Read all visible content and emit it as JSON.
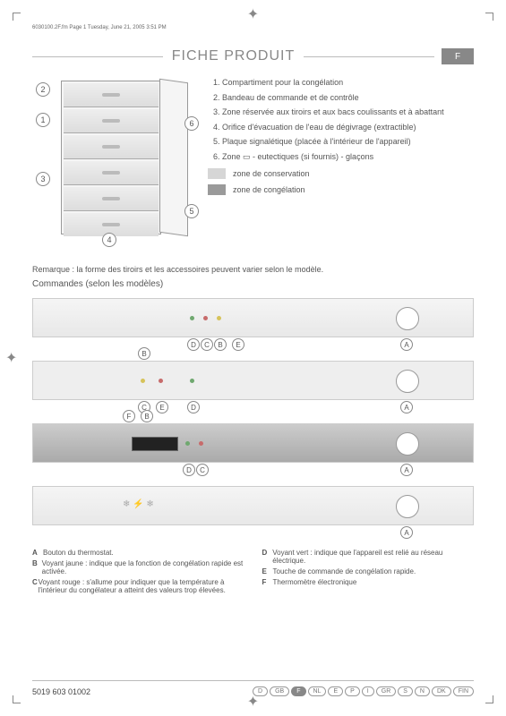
{
  "meta_header": "6030100.2F.fm Page 1 Tuesday, June 21, 2005 3:51 PM",
  "title": "FICHE PRODUIT",
  "title_tag": "F",
  "diagram": {
    "callouts": [
      "1",
      "2",
      "3",
      "4",
      "5",
      "6"
    ],
    "items": [
      "Compartiment pour la congélation",
      "Bandeau de commande et de contrôle",
      "Zone réservée aux tiroirs et aux bacs coulissants et à abattant",
      "Orifice d'évacuation de l'eau de dégivrage (extractible)",
      "Plaque signalétique (placée à l'intérieur de l'appareil)",
      "Zone ▭ - eutectiques (si fournis) - glaçons"
    ],
    "zones": [
      {
        "color": "#d6d6d6",
        "label": "zone de conservation"
      },
      {
        "color": "#9a9a9a",
        "label": "zone de congélation"
      }
    ]
  },
  "note": "Remarque : la forme des tiroirs et les accessoires peuvent varier selon le modèle.",
  "subhead": "Commandes (selon les modèles)",
  "panels": [
    {
      "labels": [
        "D",
        "C",
        "B",
        "E",
        "A"
      ],
      "type": "dial-right"
    },
    {
      "labels": [
        "B",
        "C",
        "E",
        "D",
        "A"
      ],
      "type": "dial-right-leds"
    },
    {
      "labels": [
        "F",
        "B",
        "D",
        "C",
        "A"
      ],
      "type": "display-dial"
    },
    {
      "labels": [
        "A"
      ],
      "type": "dial-simple"
    }
  ],
  "command_legend": {
    "left": [
      {
        "l": "A",
        "t": "Bouton du thermostat."
      },
      {
        "l": "B",
        "t": "Voyant jaune : indique que la fonction de congélation rapide est activée."
      },
      {
        "l": "C",
        "t": "Voyant rouge : s'allume pour indiquer que la température à l'intérieur du congélateur a atteint des valeurs trop élevées."
      }
    ],
    "right": [
      {
        "l": "D",
        "t": "Voyant vert : indique que l'appareil est relié au réseau électrique."
      },
      {
        "l": "E",
        "t": "Touche de commande de congélation rapide."
      },
      {
        "l": "F",
        "t": "Thermomètre électronique"
      }
    ]
  },
  "footer": {
    "code": "5019 603 01002",
    "langs": [
      "D",
      "GB",
      "F",
      "NL",
      "E",
      "P",
      "I",
      "GR",
      "S",
      "N",
      "DK",
      "FIN"
    ],
    "active_lang": "F"
  },
  "colors": {
    "text": "#555555",
    "rule": "#bbbbbb",
    "tag_bg": "#888888",
    "led_green": "#6fa86f",
    "led_yellow": "#d6c35a",
    "led_red": "#c76b6b"
  }
}
